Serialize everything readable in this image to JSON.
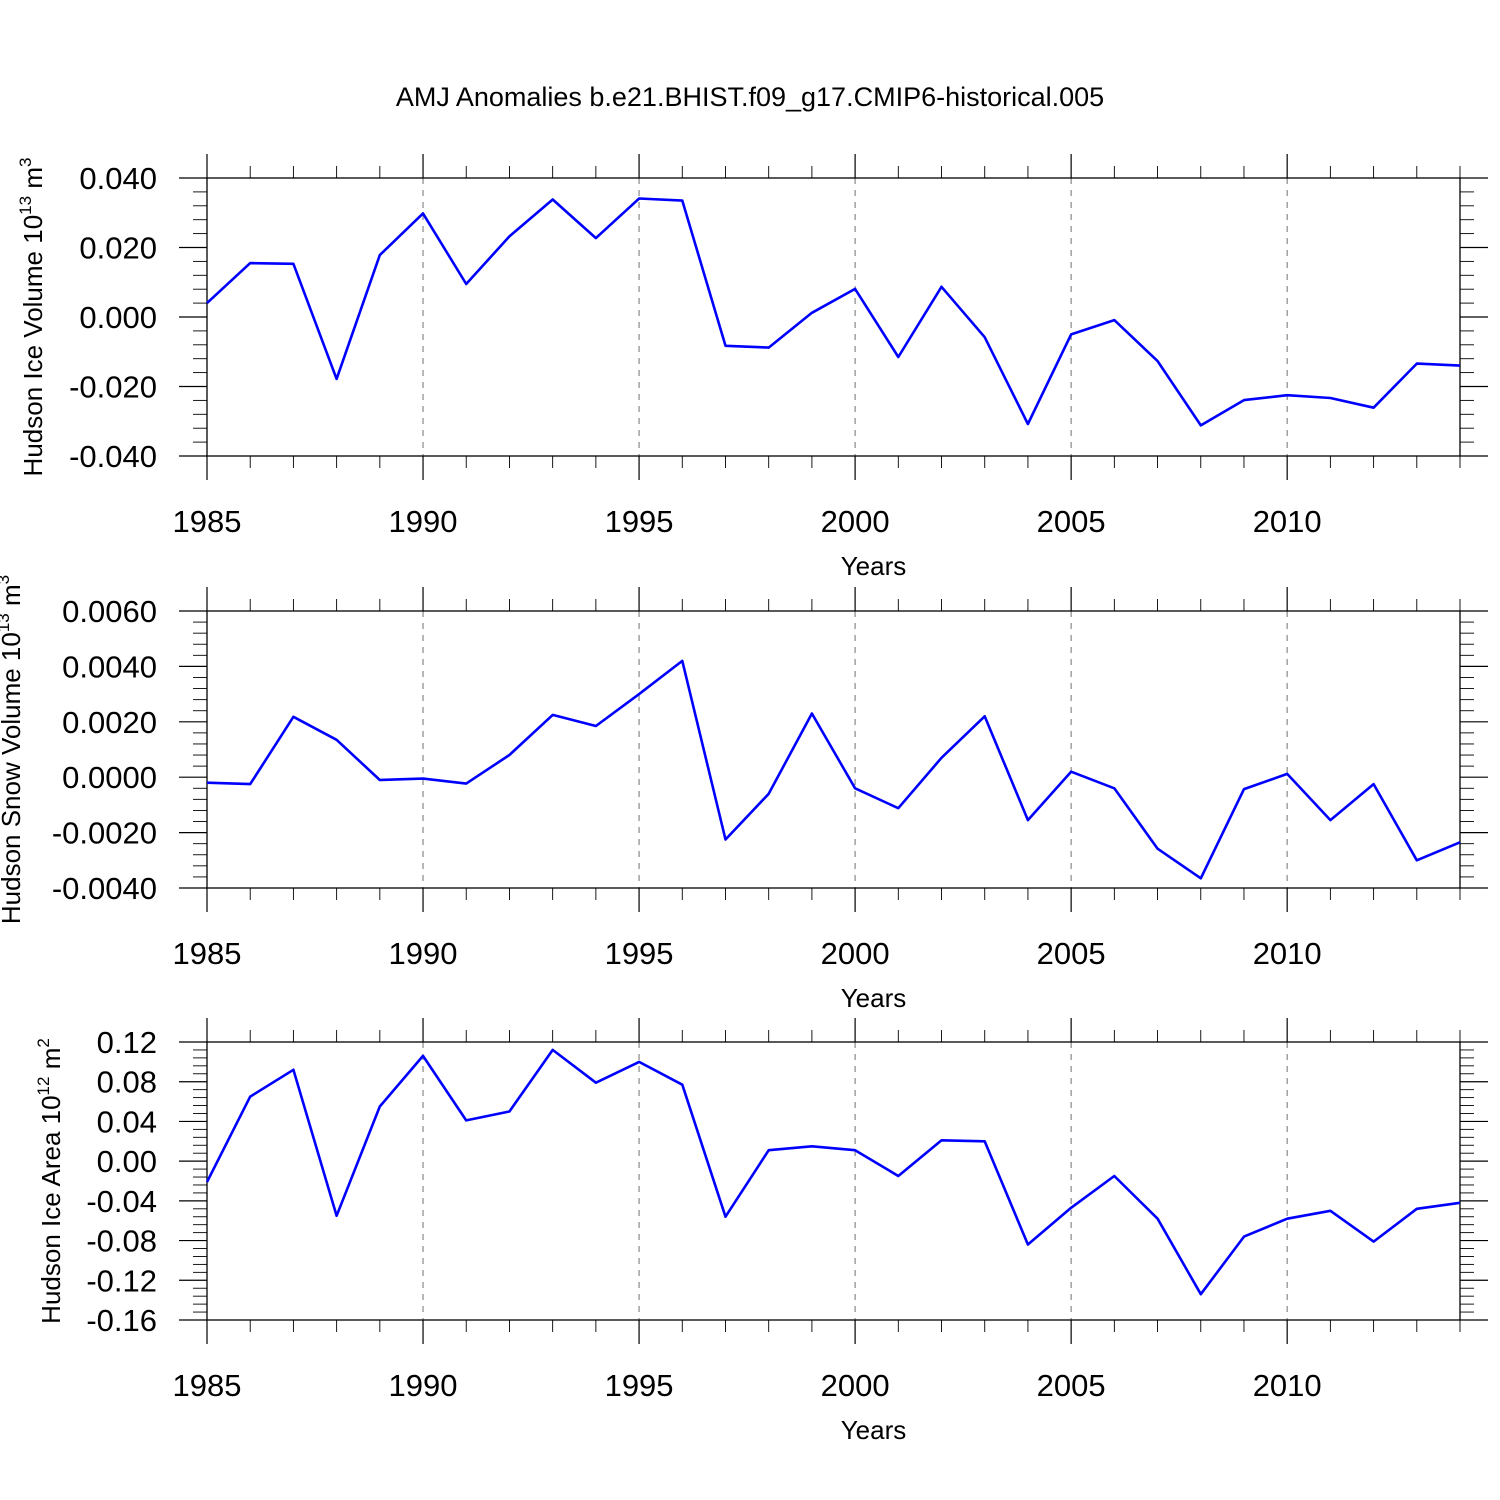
{
  "title": "AMJ Anomalies b.e21.BHIST.f09_g17.CMIP6-historical.005",
  "chart_data": [
    {
      "type": "line",
      "xlabel": "Years",
      "ylabel": "Hudson Ice Volume 10",
      "ylabel_exp": "13",
      "ylabel_unit": " m",
      "ylabel_unit_exp": "3",
      "xlim": [
        1985,
        2014
      ],
      "ylim": [
        -0.04,
        0.04
      ],
      "xticks": [
        1985,
        1990,
        1995,
        2000,
        2005,
        2010
      ],
      "xtick_labels": [
        "1985",
        "1990",
        "1995",
        "2000",
        "2005",
        "2010"
      ],
      "yticks": [
        -0.04,
        -0.02,
        0.0,
        0.02,
        0.04
      ],
      "ytick_labels": [
        "-0.040",
        "-0.020",
        "0.000",
        "0.020",
        "0.040"
      ],
      "x": [
        1985,
        1986,
        1987,
        1988,
        1989,
        1990,
        1991,
        1992,
        1993,
        1994,
        1995,
        1996,
        1997,
        1998,
        1999,
        2000,
        2001,
        2002,
        2003,
        2004,
        2005,
        2006,
        2007,
        2008,
        2009,
        2010,
        2011,
        2012,
        2013,
        2014
      ],
      "series": [
        {
          "color": "#0000ff",
          "values": [
            0.004,
            0.0155,
            0.0153,
            -0.0178,
            0.0178,
            0.0298,
            0.0095,
            0.0232,
            0.0338,
            0.0227,
            0.0341,
            0.0335,
            -0.0083,
            -0.0088,
            0.0012,
            0.0081,
            -0.0115,
            0.0087,
            -0.0058,
            -0.0308,
            -0.005,
            -0.0009,
            -0.0127,
            -0.0312,
            -0.0239,
            -0.0225,
            -0.0233,
            -0.0261,
            -0.0134,
            -0.014
          ]
        }
      ],
      "grid": "vertical dashed at major x ticks"
    },
    {
      "type": "line",
      "xlabel": "Years",
      "ylabel": "Hudson Snow Volume 10",
      "ylabel_exp": "13",
      "ylabel_unit": " m",
      "ylabel_unit_exp": "3",
      "xlim": [
        1985,
        2014
      ],
      "ylim": [
        -0.004,
        0.006
      ],
      "xticks": [
        1985,
        1990,
        1995,
        2000,
        2005,
        2010
      ],
      "xtick_labels": [
        "1985",
        "1990",
        "1995",
        "2000",
        "2005",
        "2010"
      ],
      "yticks": [
        -0.004,
        -0.002,
        0.0,
        0.002,
        0.004,
        0.006
      ],
      "ytick_labels": [
        "-0.0040",
        "-0.0020",
        "0.0000",
        "0.0020",
        "0.0040",
        "0.0060"
      ],
      "x": [
        1985,
        1986,
        1987,
        1988,
        1989,
        1990,
        1991,
        1992,
        1993,
        1994,
        1995,
        1996,
        1997,
        1998,
        1999,
        2000,
        2001,
        2002,
        2003,
        2004,
        2005,
        2006,
        2007,
        2008,
        2009,
        2010,
        2011,
        2012,
        2013,
        2014
      ],
      "series": [
        {
          "color": "#0000ff",
          "values": [
            -0.0002,
            -0.00025,
            0.00218,
            0.00135,
            -0.0001,
            -5e-05,
            -0.00023,
            0.0008,
            0.00225,
            0.00185,
            0.003,
            0.0042,
            -0.00225,
            -0.0006,
            0.0023,
            -0.0004,
            -0.00112,
            0.0007,
            0.0022,
            -0.00155,
            0.0002,
            -0.0004,
            -0.00258,
            -0.00365,
            -0.00043,
            0.00012,
            -0.00155,
            -0.00025,
            -0.003,
            -0.00235
          ]
        }
      ],
      "grid": "vertical dashed at major x ticks"
    },
    {
      "type": "line",
      "xlabel": "Years",
      "ylabel": "Hudson Ice Area 10",
      "ylabel_exp": "12",
      "ylabel_unit": " m",
      "ylabel_unit_exp": "2",
      "xlim": [
        1985,
        2014
      ],
      "ylim": [
        -0.16,
        0.12
      ],
      "xticks": [
        1985,
        1990,
        1995,
        2000,
        2005,
        2010
      ],
      "xtick_labels": [
        "1985",
        "1990",
        "1995",
        "2000",
        "2005",
        "2010"
      ],
      "yticks": [
        -0.16,
        -0.12,
        -0.08,
        -0.04,
        0.0,
        0.04,
        0.08,
        0.12
      ],
      "ytick_labels": [
        "-0.16",
        "-0.12",
        "-0.08",
        "-0.04",
        "0.00",
        "0.04",
        "0.08",
        "0.12"
      ],
      "x": [
        1985,
        1986,
        1987,
        1988,
        1989,
        1990,
        1991,
        1992,
        1993,
        1994,
        1995,
        1996,
        1997,
        1998,
        1999,
        2000,
        2001,
        2002,
        2003,
        2004,
        2005,
        2006,
        2007,
        2008,
        2009,
        2010,
        2011,
        2012,
        2013,
        2014
      ],
      "series": [
        {
          "color": "#0000ff",
          "values": [
            -0.021,
            0.065,
            0.092,
            -0.055,
            0.055,
            0.106,
            0.041,
            0.05,
            0.112,
            0.079,
            0.1,
            0.077,
            -0.056,
            0.011,
            0.015,
            0.011,
            -0.015,
            0.021,
            0.02,
            -0.084,
            -0.047,
            -0.015,
            -0.058,
            -0.134,
            -0.076,
            -0.058,
            -0.05,
            -0.081,
            -0.048,
            -0.042
          ]
        }
      ],
      "grid": "vertical dashed at major x ticks"
    }
  ]
}
